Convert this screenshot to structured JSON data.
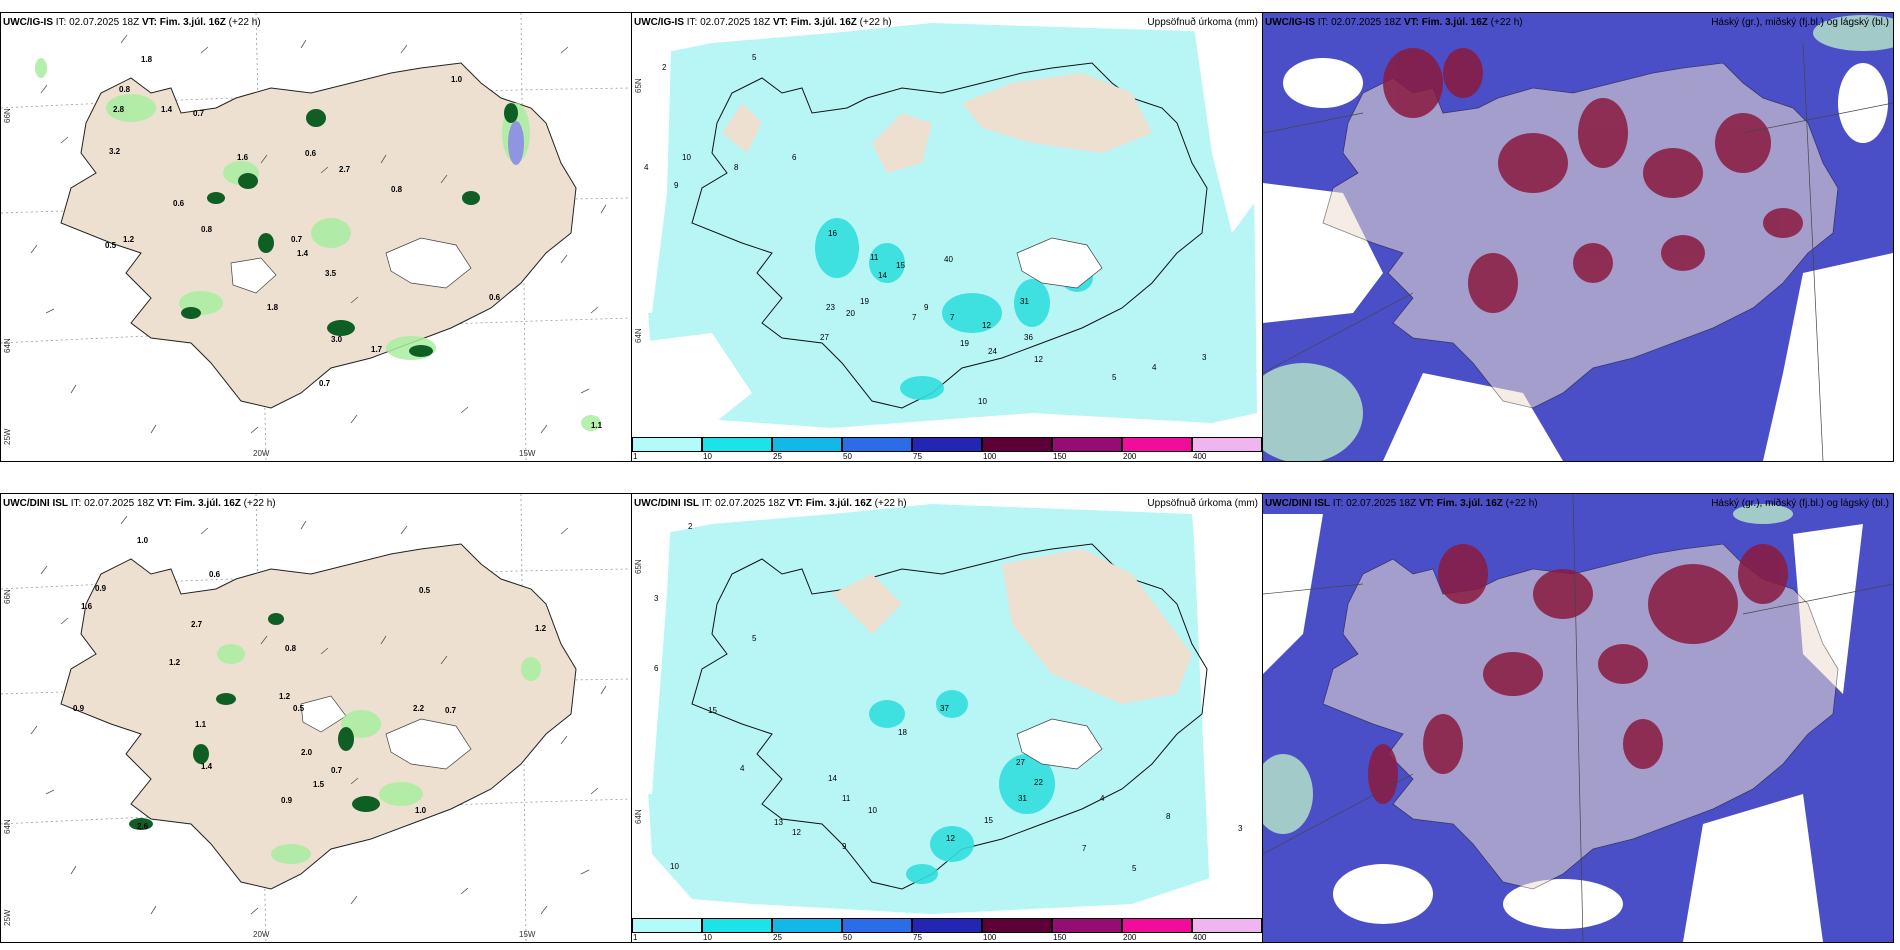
{
  "panels": [
    {
      "model": "UWC/IG-IS",
      "it_label": "IT:",
      "it": "02.07.2025 18Z",
      "vt_label": "VT:",
      "vt": "Fim. 3.júl. 16Z",
      "lead": "(+22 h)",
      "title": ""
    },
    {
      "model": "UWC/IG-IS",
      "it_label": "IT:",
      "it": "02.07.2025 18Z",
      "vt_label": "VT:",
      "vt": "Fim. 3.júl. 16Z",
      "lead": "(+22 h)",
      "title": "Uppsöfnuð úrkoma (mm)"
    },
    {
      "model": "UWC/IG-IS",
      "it_label": "IT:",
      "it": "02.07.2025 18Z",
      "vt_label": "VT:",
      "vt": "Fim. 3.júl. 16Z",
      "lead": "(+22 h)",
      "title": "Háský (gr.), miðský (fj.bl.) og lágský (bl.)"
    },
    {
      "model": "UWC/DINI ISL",
      "it_label": "IT:",
      "it": "02.07.2025 18Z",
      "vt_label": "VT:",
      "vt": "Fim. 3.júl. 16Z",
      "lead": "(+22 h)",
      "title": ""
    },
    {
      "model": "UWC/DINI ISL",
      "it_label": "IT:",
      "it": "02.07.2025 18Z",
      "vt_label": "VT:",
      "vt": "Fim. 3.júl. 16Z",
      "lead": "(+22 h)",
      "title": "Uppsöfnuð úrkoma (mm)"
    },
    {
      "model": "UWC/DINI ISL",
      "it_label": "IT:",
      "it": "02.07.2025 18Z",
      "vt_label": "VT:",
      "vt": "Fim. 3.júl. 16Z",
      "lead": "(+22 h)",
      "title": "Háský (gr.), miðský (fj.bl.) og lágský (bl.)"
    }
  ],
  "axes": {
    "lat_top": "66N",
    "lat_mid": "64N",
    "lon_left": "25W",
    "lon_20": "20W",
    "lon_15": "15W",
    "lat_65": "65N"
  },
  "colorbar": {
    "ticks": [
      "1",
      "10",
      "25",
      "50",
      "75",
      "100",
      "150",
      "200",
      "400"
    ],
    "colors": [
      "#b3fbfb",
      "#1ce3e7",
      "#13b9e6",
      "#2b6de7",
      "#2226b2",
      "#5c0037",
      "#960c75",
      "#f20c9c",
      "#f0b4ee"
    ]
  },
  "map_colors": {
    "land": "#ede0d1",
    "sea": "#ffffff",
    "precip_light": "#b8f5f5",
    "precip_mid": "#32dede",
    "shower_light": "#a8eda0",
    "shower_dark": "#0f5f25",
    "cloud_low": "#4b4fc7",
    "cloud_mid": "#8b1a3e",
    "cloud_high": "#b8e9c8"
  },
  "values_top_left": [
    "1.8",
    "0.8",
    "2.8",
    "1.4",
    "0.7",
    "1.6",
    "3.2",
    "0.6",
    "0.8",
    "1.2",
    "0.6",
    "0.8",
    "2.7",
    "0.7",
    "1.4",
    "3.5",
    "1.8",
    "3.0",
    "1.7",
    "0.7",
    "1.0",
    "0.6",
    "0.5",
    "1.1"
  ],
  "values_bottom_left": [
    "1.0",
    "0.6",
    "0.9",
    "1.6",
    "2.7",
    "1.2",
    "0.8",
    "0.5",
    "0.9",
    "1.2",
    "1.1",
    "0.5",
    "2.2",
    "0.7",
    "1.2",
    "2.0",
    "0.7",
    "1.5",
    "0.9",
    "1.4",
    "2.6",
    "1.0"
  ],
  "values_top_mid": [
    "2",
    "5",
    "4",
    "10",
    "9",
    "16",
    "14",
    "15",
    "40",
    "11",
    "23",
    "19",
    "20",
    "27",
    "9",
    "7",
    "12",
    "31",
    "36",
    "24",
    "19",
    "12",
    "10",
    "3",
    "4",
    "5",
    "6",
    "8",
    "7"
  ],
  "values_bottom_mid": [
    "2",
    "3",
    "4",
    "6",
    "5",
    "15",
    "13",
    "12",
    "18",
    "37",
    "14",
    "11",
    "10",
    "9",
    "27",
    "22",
    "31",
    "15",
    "12",
    "4",
    "3",
    "8",
    "7",
    "5",
    "10"
  ]
}
